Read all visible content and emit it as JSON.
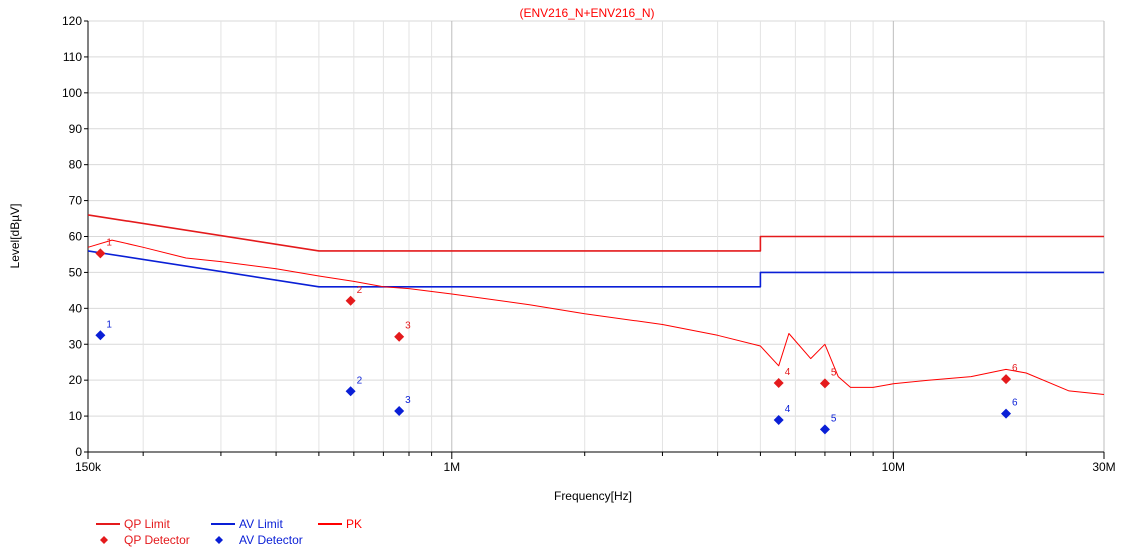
{
  "chart_data": {
    "type": "line",
    "title": "(ENV216_N+ENV216_N)",
    "xlabel": "Frequency[Hz]",
    "ylabel": "Level[dBµV]",
    "x_scale": "log",
    "xlim": [
      150000,
      30000000
    ],
    "ylim": [
      0,
      120
    ],
    "grid": true,
    "x_tick_values": [
      150000,
      1000000,
      10000000,
      30000000
    ],
    "x_tick_labels": [
      "150k",
      "1M",
      "10M",
      "30M"
    ],
    "x_minor_ticks": [
      200000,
      300000,
      400000,
      500000,
      600000,
      700000,
      800000,
      900000,
      2000000,
      3000000,
      4000000,
      5000000,
      6000000,
      7000000,
      8000000,
      9000000,
      20000000
    ],
    "y_ticks": [
      0,
      10,
      20,
      30,
      40,
      50,
      60,
      70,
      80,
      90,
      100,
      110,
      120
    ],
    "colors": {
      "qp": "#e41a1c",
      "av": "#0a1fd6",
      "pk": "#ff0000"
    },
    "series": [
      {
        "name": "QP Limit",
        "color": "#e41a1c",
        "points": [
          [
            150000,
            66
          ],
          [
            500000,
            56
          ],
          [
            5000000,
            56
          ],
          [
            5000000,
            60
          ],
          [
            30000000,
            60
          ]
        ]
      },
      {
        "name": "AV Limit",
        "color": "#0a1fd6",
        "points": [
          [
            150000,
            56
          ],
          [
            500000,
            46
          ],
          [
            5000000,
            46
          ],
          [
            5000000,
            50
          ],
          [
            30000000,
            50
          ]
        ]
      },
      {
        "name": "PK",
        "color": "#ff0000",
        "points": [
          [
            150000,
            57
          ],
          [
            170000,
            59
          ],
          [
            200000,
            57
          ],
          [
            250000,
            54
          ],
          [
            300000,
            53
          ],
          [
            400000,
            51
          ],
          [
            500000,
            49
          ],
          [
            600000,
            47.5
          ],
          [
            700000,
            46
          ],
          [
            800000,
            45.5
          ],
          [
            1000000,
            44
          ],
          [
            1500000,
            41
          ],
          [
            2000000,
            38.5
          ],
          [
            3000000,
            35.5
          ],
          [
            4000000,
            32.5
          ],
          [
            5000000,
            29.5
          ],
          [
            5500000,
            24
          ],
          [
            5800000,
            33
          ],
          [
            6500000,
            26
          ],
          [
            7000000,
            30
          ],
          [
            7500000,
            21
          ],
          [
            8000000,
            18
          ],
          [
            9000000,
            18
          ],
          [
            10000000,
            19
          ],
          [
            12000000,
            20
          ],
          [
            15000000,
            21
          ],
          [
            18000000,
            23
          ],
          [
            20000000,
            22
          ],
          [
            25000000,
            17
          ],
          [
            30000000,
            16
          ]
        ]
      }
    ],
    "qp_detector": {
      "name": "QP Detector",
      "color": "#e41a1c",
      "points": [
        {
          "label": "1",
          "x": 160000,
          "y": 55.3
        },
        {
          "label": "2",
          "x": 590000,
          "y": 42.1
        },
        {
          "label": "3",
          "x": 760000,
          "y": 32.1
        },
        {
          "label": "4",
          "x": 5500000,
          "y": 19.2
        },
        {
          "label": "5",
          "x": 7000000,
          "y": 19.1
        },
        {
          "label": "6",
          "x": 18000000,
          "y": 20.3
        }
      ]
    },
    "av_detector": {
      "name": "AV Detector",
      "color": "#0a1fd6",
      "points": [
        {
          "label": "1",
          "x": 160000,
          "y": 32.5
        },
        {
          "label": "2",
          "x": 590000,
          "y": 16.9
        },
        {
          "label": "3",
          "x": 760000,
          "y": 11.4
        },
        {
          "label": "4",
          "x": 5500000,
          "y": 8.9
        },
        {
          "label": "5",
          "x": 7000000,
          "y": 6.3
        },
        {
          "label": "6",
          "x": 18000000,
          "y": 10.7
        }
      ]
    }
  }
}
